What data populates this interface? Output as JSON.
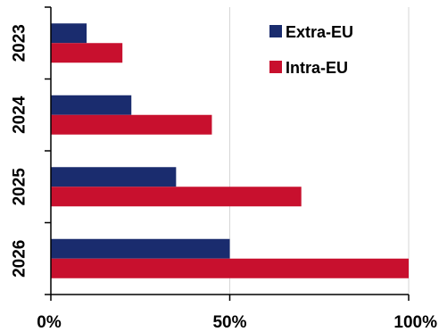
{
  "chart_data": {
    "type": "bar",
    "orientation": "horizontal",
    "categories": [
      "2023",
      "2024",
      "2025",
      "2026"
    ],
    "series": [
      {
        "name": "Extra-EU",
        "color": "#1a2c6e",
        "values": [
          10,
          22.5,
          35,
          50
        ]
      },
      {
        "name": "Intra-EU",
        "color": "#c8102e",
        "values": [
          20,
          45,
          70,
          100
        ]
      }
    ],
    "x_ticks": [
      "0%",
      "50%",
      "100%"
    ],
    "x_tick_values": [
      0,
      50,
      100
    ],
    "xlim": [
      0,
      100
    ],
    "grid": "vertical lines at tick positions",
    "legend_position": "top-right",
    "title": "",
    "xlabel": "",
    "ylabel": ""
  }
}
